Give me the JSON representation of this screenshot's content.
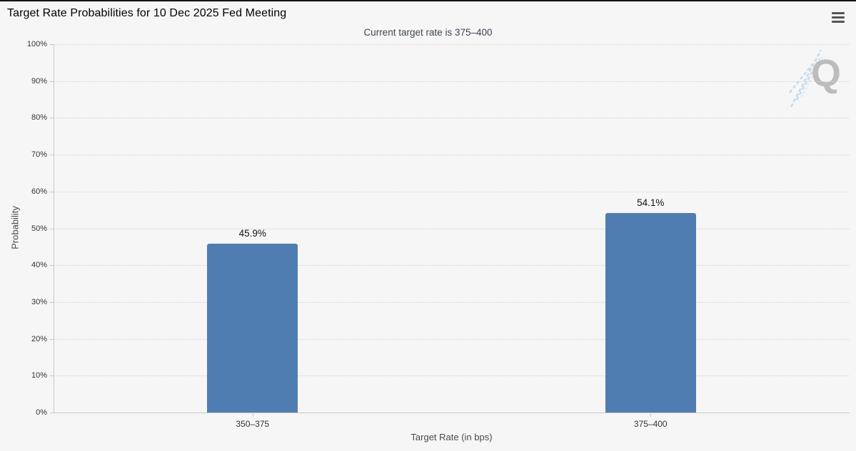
{
  "menu": {
    "icon": "hamburger-icon",
    "tooltip": "Chart context menu"
  },
  "watermark": {
    "letter": "Q"
  },
  "colors": {
    "bar": "#507db1",
    "background": "#f6f6f7",
    "axis": "#c9c9c9",
    "grid": "#d4d4d4",
    "subtitle_text": "#3d4652",
    "top_border": "#141414",
    "watermark_gray": "#bcbcbc",
    "watermark_blue": "#b6d0e6"
  },
  "chart_data": {
    "type": "bar",
    "title": "Target Rate Probabilities for 10 Dec 2025 Fed Meeting",
    "subtitle": "Current target rate is 375–400",
    "categories": [
      "350–375",
      "375–400"
    ],
    "values": [
      45.9,
      54.1
    ],
    "data_labels": [
      "45.9%",
      "54.1%"
    ],
    "xlabel": "Target Rate (in bps)",
    "ylabel": "Probability",
    "ylim": [
      0,
      100
    ],
    "ytick_step": 10,
    "ytick_labels": [
      "0%",
      "10%",
      "20%",
      "30%",
      "40%",
      "50%",
      "60%",
      "70%",
      "80%",
      "90%",
      "100%"
    ],
    "grid": "horizontal-dotted",
    "legend": "none"
  }
}
